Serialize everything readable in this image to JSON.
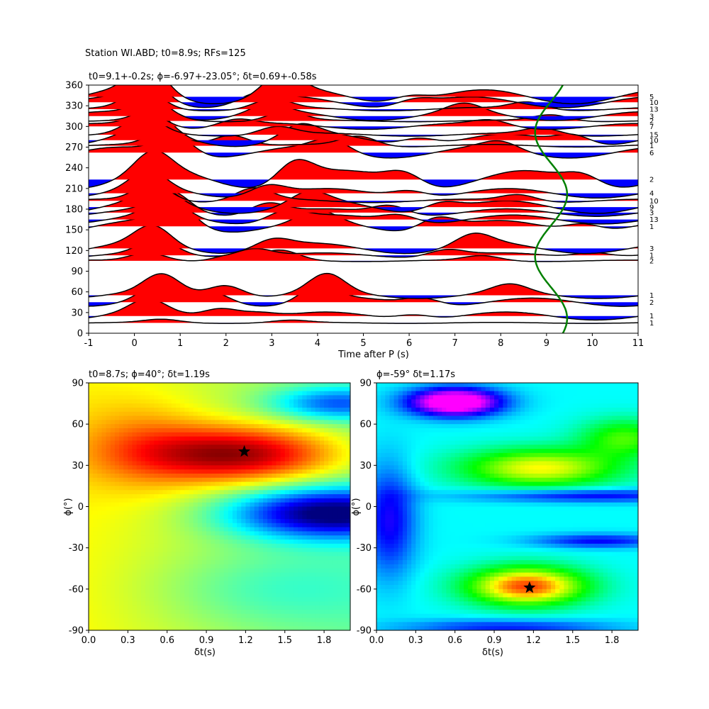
{
  "suptitle": "Station WI.ABD; t0=8.9s; RFs=125",
  "chart_data": [
    {
      "type": "line",
      "panel": "receiver-function-gather",
      "title": "t0=9.1+-0.2s; ϕ=-6.97+-23.05°; δt=0.69+-0.58s",
      "xlabel": "Time after P (s)",
      "ylabel": "",
      "xlim": [
        -1,
        11
      ],
      "ylim": [
        0,
        360
      ],
      "xticks": [
        "-1",
        "0",
        "1",
        "2",
        "3",
        "4",
        "5",
        "6",
        "7",
        "8",
        "9",
        "10",
        "11"
      ],
      "yticks": [
        "0",
        "30",
        "60",
        "90",
        "120",
        "150",
        "180",
        "210",
        "240",
        "270",
        "300",
        "330",
        "360"
      ],
      "fill_colors": {
        "positive": "#ff0000",
        "negative": "#0000ff",
        "line": "#000000",
        "t0_curve": "#008000"
      },
      "traces": [
        {
          "baz": 15,
          "count": "1",
          "amp": 0.65,
          "wiggle": [
            [
              0.6,
              0.3,
              0.1
            ],
            [
              3.4,
              0.22,
              -0.08
            ]
          ]
        },
        {
          "baz": 25,
          "count": "1",
          "amp": 0.85,
          "wiggle": [
            [
              0.3,
              0.9,
              0.12
            ],
            [
              1.9,
              0.7,
              0.25
            ],
            [
              2.7,
              0.4,
              0.6
            ],
            [
              6.1,
              0.35,
              0.18
            ]
          ]
        },
        {
          "baz": 45,
          "count": "2",
          "amp": 1.1,
          "wiggle": [
            [
              0.5,
              0.7,
              0.2
            ],
            [
              1.7,
              0.5,
              0.55
            ],
            [
              4.0,
              0.8,
              0.9
            ],
            [
              6.3,
              0.4,
              0.3
            ]
          ]
        },
        {
          "baz": 55,
          "count": "1",
          "amp": 1.2,
          "wiggle": [
            [
              0.6,
              0.9,
              0.3
            ],
            [
              2.0,
              0.6,
              0.8
            ],
            [
              4.2,
              0.9,
              1.2
            ],
            [
              8.2,
              0.4,
              0.5
            ]
          ]
        },
        {
          "baz": 105,
          "count": "2",
          "amp": 0.95,
          "wiggle": [
            [
              0.3,
              0.5,
              0.4
            ],
            [
              2.2,
              0.4,
              0.9
            ],
            [
              3.2,
              0.6,
              1.5
            ],
            [
              7.6,
              0.3,
              0.7
            ]
          ]
        },
        {
          "baz": 113,
          "count": "1",
          "amp": 1.0,
          "wiggle": [
            [
              0.5,
              0.8,
              0.5
            ],
            [
              2.6,
              0.5,
              1.0
            ],
            [
              6.8,
              0.4,
              0.4
            ],
            [
              10.0,
              0.3,
              0.8
            ]
          ]
        },
        {
          "baz": 123,
          "count": "3",
          "amp": 1.1,
          "wiggle": [
            [
              0.4,
              1.0,
              0.6
            ],
            [
              3.0,
              0.5,
              1.2
            ],
            [
              7.4,
              0.6,
              0.9
            ]
          ]
        },
        {
          "baz": 155,
          "count": "1",
          "amp": 1.2,
          "wiggle": [
            [
              0.9,
              1.1,
              0.7
            ],
            [
              4.0,
              0.5,
              1.4
            ],
            [
              6.6,
              0.6,
              1.0
            ],
            [
              9.8,
              0.4,
              0.5
            ]
          ]
        },
        {
          "baz": 165,
          "count": "13",
          "amp": 1.15,
          "wiggle": [
            [
              0.7,
              0.9,
              0.8
            ],
            [
              3.3,
              0.5,
              1.6
            ],
            [
              5.8,
              0.4,
              1.1
            ]
          ]
        },
        {
          "baz": 175,
          "count": "3",
          "amp": 1.1,
          "wiggle": [
            [
              0.8,
              1.0,
              0.9
            ],
            [
              2.9,
              0.6,
              1.8
            ],
            [
              5.6,
              0.5,
              1.2
            ]
          ]
        },
        {
          "baz": 183,
          "count": "9",
          "amp": 1.05,
          "wiggle": [
            [
              0.5,
              0.9,
              1.0
            ],
            [
              3.8,
              0.6,
              2.0
            ],
            [
              6.7,
              0.5,
              1.3
            ]
          ]
        },
        {
          "baz": 192,
          "count": "10",
          "amp": 1.0,
          "wiggle": [
            [
              0.4,
              1.0,
              1.1
            ],
            [
              2.6,
              0.7,
              2.1
            ],
            [
              8.4,
              0.4,
              1.4
            ]
          ]
        },
        {
          "baz": 203,
          "count": "4",
          "amp": 1.05,
          "wiggle": [
            [
              0.3,
              1.0,
              1.2
            ],
            [
              2.9,
              0.6,
              2.2
            ],
            [
              6.0,
              0.4,
              1.5
            ]
          ]
        },
        {
          "baz": 223,
          "count": "2",
          "amp": 1.2,
          "wiggle": [
            [
              0.4,
              1.0,
              1.3
            ],
            [
              3.5,
              1.0,
              2.3
            ],
            [
              5.9,
              0.6,
              1.6
            ],
            [
              9.8,
              0.5,
              2.0
            ]
          ]
        },
        {
          "baz": 262,
          "count": "6",
          "amp": 1.1,
          "wiggle": [
            [
              0.9,
              1.0,
              1.4
            ],
            [
              4.3,
              0.6,
              2.4
            ],
            [
              8.0,
              0.4,
              1.7
            ]
          ]
        },
        {
          "baz": 272,
          "count": "1",
          "amp": 0.95,
          "wiggle": [
            [
              0.7,
              0.9,
              1.5
            ],
            [
              2.1,
              0.7,
              2.5
            ],
            [
              4.9,
              0.6,
              1.8
            ]
          ]
        },
        {
          "baz": 280,
          "count": "10",
          "amp": 1.2,
          "wiggle": [
            [
              0.4,
              1.1,
              1.6
            ],
            [
              3.6,
              0.6,
              2.6
            ],
            [
              6.2,
              0.4,
              1.9
            ],
            [
              9.6,
              0.5,
              2.2
            ]
          ]
        },
        {
          "baz": 288,
          "count": "15",
          "amp": 0.95,
          "wiggle": [
            [
              0.2,
              1.0,
              1.7
            ],
            [
              3.1,
              0.5,
              2.7
            ],
            [
              8.9,
              0.4,
              2.0
            ]
          ]
        },
        {
          "baz": 300,
          "count": "7",
          "amp": 0.8,
          "wiggle": [
            [
              0.3,
              1.0,
              1.8
            ],
            [
              2.2,
              0.5,
              2.8
            ],
            [
              7.8,
              0.4,
              2.1
            ]
          ]
        },
        {
          "baz": 308,
          "count": "2",
          "amp": 0.9,
          "wiggle": [
            [
              0.5,
              0.9,
              1.9
            ],
            [
              3.3,
              0.6,
              2.9
            ],
            [
              9.1,
              0.4,
              2.2
            ]
          ]
        },
        {
          "baz": 315,
          "count": "3",
          "amp": 1.0,
          "wiggle": [
            [
              0.4,
              1.0,
              2.0
            ],
            [
              2.9,
              0.5,
              3.0
            ],
            [
              7.2,
              0.5,
              2.3
            ]
          ]
        },
        {
          "baz": 325,
          "count": "13",
          "amp": 1.1,
          "wiggle": [
            [
              0.2,
              1.0,
              2.1
            ],
            [
              3.0,
              0.5,
              3.1
            ],
            [
              8.6,
              0.4,
              2.4
            ]
          ]
        },
        {
          "baz": 335,
          "count": "10",
          "amp": 1.2,
          "wiggle": [
            [
              0.3,
              1.0,
              2.2
            ],
            [
              2.7,
              0.4,
              3.2
            ],
            [
              6.1,
              0.3,
              2.5
            ]
          ]
        },
        {
          "baz": 343,
          "count": "5",
          "amp": 1.4,
          "wiggle": [
            [
              0.3,
              1.1,
              2.3
            ],
            [
              3.2,
              0.8,
              3.3
            ],
            [
              6.0,
              0.3,
              2.6
            ]
          ]
        }
      ],
      "t0_curve": {
        "center": 9.1,
        "amplitude": 0.35,
        "phase_deg": 47
      }
    },
    {
      "type": "heatmap",
      "panel": "energy-grid-left",
      "title": "t0=8.7s; ϕ=40°; δt=1.19s",
      "xlabel": "δt(s)",
      "ylabel": "ϕ(°)",
      "xlim": [
        0,
        2
      ],
      "ylim": [
        -90,
        90
      ],
      "xticks": [
        "0.0",
        "0.3",
        "0.6",
        "0.9",
        "1.2",
        "1.5",
        "1.8"
      ],
      "yticks": [
        "-90",
        "-60",
        "-30",
        "0",
        "30",
        "60",
        "90"
      ],
      "colormap": "jet",
      "best": {
        "dt": 1.19,
        "phi": 40
      }
    },
    {
      "type": "heatmap",
      "panel": "energy-grid-right",
      "title": "ϕ=-59° δt=1.17s",
      "xlabel": "δt(s)",
      "ylabel": "ϕ(°)",
      "xlim": [
        0,
        2
      ],
      "ylim": [
        -90,
        90
      ],
      "xticks": [
        "0.0",
        "0.3",
        "0.6",
        "0.9",
        "1.2",
        "1.5",
        "1.8"
      ],
      "yticks": [
        "-90",
        "-60",
        "-30",
        "0",
        "30",
        "60",
        "90"
      ],
      "colormap": "hsv",
      "best": {
        "dt": 1.17,
        "phi": -59
      }
    }
  ]
}
